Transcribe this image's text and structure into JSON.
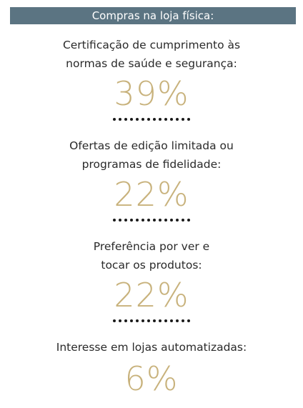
{
  "header": {
    "title": "Compras na loja física:"
  },
  "stats": [
    {
      "label_line1": "Certificação de cumprimento às",
      "label_line2": "normas de saúde e segurança:",
      "value": "39%"
    },
    {
      "label_line1": "Ofertas de edição limitada ou",
      "label_line2": "programas de fidelidade:",
      "value": "22%"
    },
    {
      "label_line1": "Preferência por ver e",
      "label_line2": "tocar os produtos:",
      "value": "22%"
    },
    {
      "label_line1": "Interesse em lojas automatizadas:",
      "label_line2": "",
      "value": "6%"
    }
  ],
  "colors": {
    "header_bg": "#5b7482",
    "accent": "#c8b27c"
  }
}
